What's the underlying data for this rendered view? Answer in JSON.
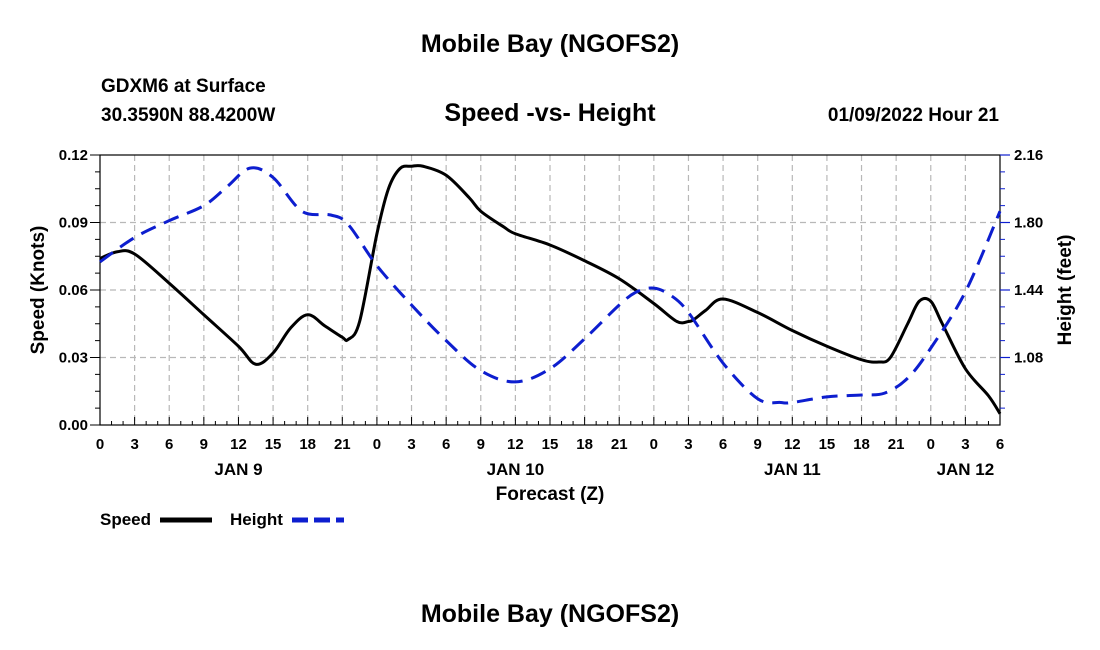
{
  "page": {
    "title": "Mobile Bay (NGOFS2)",
    "station": "GDXM6 at Surface",
    "coords": "30.3590N   88.4200W",
    "datetime": "01/09/2022 Hour 21",
    "footer_title": "Mobile Bay (NGOFS2)"
  },
  "chart_data": {
    "type": "line",
    "title": "Speed -vs- Height",
    "xlabel": "Forecast (Z)",
    "ylabel_left": "Speed (Knots)",
    "ylabel_right": "Height (feet)",
    "x_range_hours": [
      0,
      78
    ],
    "ylim_left": [
      0,
      0.12
    ],
    "ylim_right": [
      0.72,
      2.16
    ],
    "yticks_left": [
      "0.00",
      "0.03",
      "0.06",
      "0.09",
      "0.12"
    ],
    "yticks_left_values": [
      0,
      0.03,
      0.06,
      0.09,
      0.12
    ],
    "yticks_right": [
      "1.08",
      "1.44",
      "1.80",
      "2.16"
    ],
    "yticks_right_values": [
      1.08,
      1.44,
      1.8,
      2.16
    ],
    "xtick_labels": [
      "0",
      "3",
      "6",
      "9",
      "12",
      "15",
      "18",
      "21",
      "0",
      "3",
      "6",
      "9",
      "12",
      "15",
      "18",
      "21",
      "0",
      "3",
      "6",
      "9",
      "12",
      "15",
      "18",
      "21",
      "0",
      "3",
      "6"
    ],
    "date_labels": [
      {
        "label": "JAN 9",
        "hour": 12
      },
      {
        "label": "JAN 10",
        "hour": 36
      },
      {
        "label": "JAN 11",
        "hour": 60
      },
      {
        "label": "JAN 12",
        "hour": 75
      }
    ],
    "grid": true,
    "legend": [
      {
        "name": "Speed",
        "color": "#000000",
        "style": "solid"
      },
      {
        "name": "Height",
        "color": "#0d1ecf",
        "style": "dashed"
      }
    ],
    "series": [
      {
        "name": "Speed",
        "axis": "left",
        "color": "#000000",
        "x": [
          0,
          1.5,
          3,
          6,
          9,
          12,
          13.5,
          15,
          16.5,
          18,
          19.5,
          21,
          21.5,
          22.5,
          24,
          25,
          26,
          27,
          28,
          30,
          32,
          33,
          35,
          36,
          39,
          42,
          45,
          48,
          50,
          51,
          51.5,
          52.5,
          54,
          57,
          60,
          63,
          66,
          67.5,
          68.5,
          70,
          71,
          72,
          73,
          75,
          77,
          78
        ],
        "y": [
          0.074,
          0.077,
          0.076,
          0.063,
          0.049,
          0.035,
          0.027,
          0.032,
          0.043,
          0.049,
          0.044,
          0.039,
          0.038,
          0.046,
          0.085,
          0.105,
          0.114,
          0.115,
          0.115,
          0.111,
          0.101,
          0.095,
          0.088,
          0.085,
          0.08,
          0.073,
          0.065,
          0.054,
          0.046,
          0.046,
          0.047,
          0.051,
          0.056,
          0.05,
          0.042,
          0.035,
          0.029,
          0.028,
          0.03,
          0.045,
          0.055,
          0.055,
          0.045,
          0.025,
          0.013,
          0.005
        ]
      },
      {
        "name": "Height",
        "axis": "right",
        "color": "#0d1ecf",
        "x": [
          0,
          3,
          6,
          9,
          11,
          13,
          15,
          17.5,
          20,
          21.5,
          24,
          27,
          30,
          33,
          36,
          39,
          42,
          45,
          46.5,
          48,
          49.5,
          51,
          54,
          57,
          59,
          60,
          63,
          66,
          68,
          70,
          72,
          75,
          78
        ],
        "y": [
          1.59,
          1.72,
          1.81,
          1.89,
          1.99,
          2.09,
          2.04,
          1.86,
          1.84,
          1.79,
          1.57,
          1.36,
          1.17,
          1.01,
          0.95,
          1.02,
          1.18,
          1.36,
          1.43,
          1.45,
          1.41,
          1.32,
          1.05,
          0.86,
          0.84,
          0.84,
          0.87,
          0.88,
          0.89,
          0.97,
          1.13,
          1.43,
          1.86
        ]
      }
    ]
  }
}
